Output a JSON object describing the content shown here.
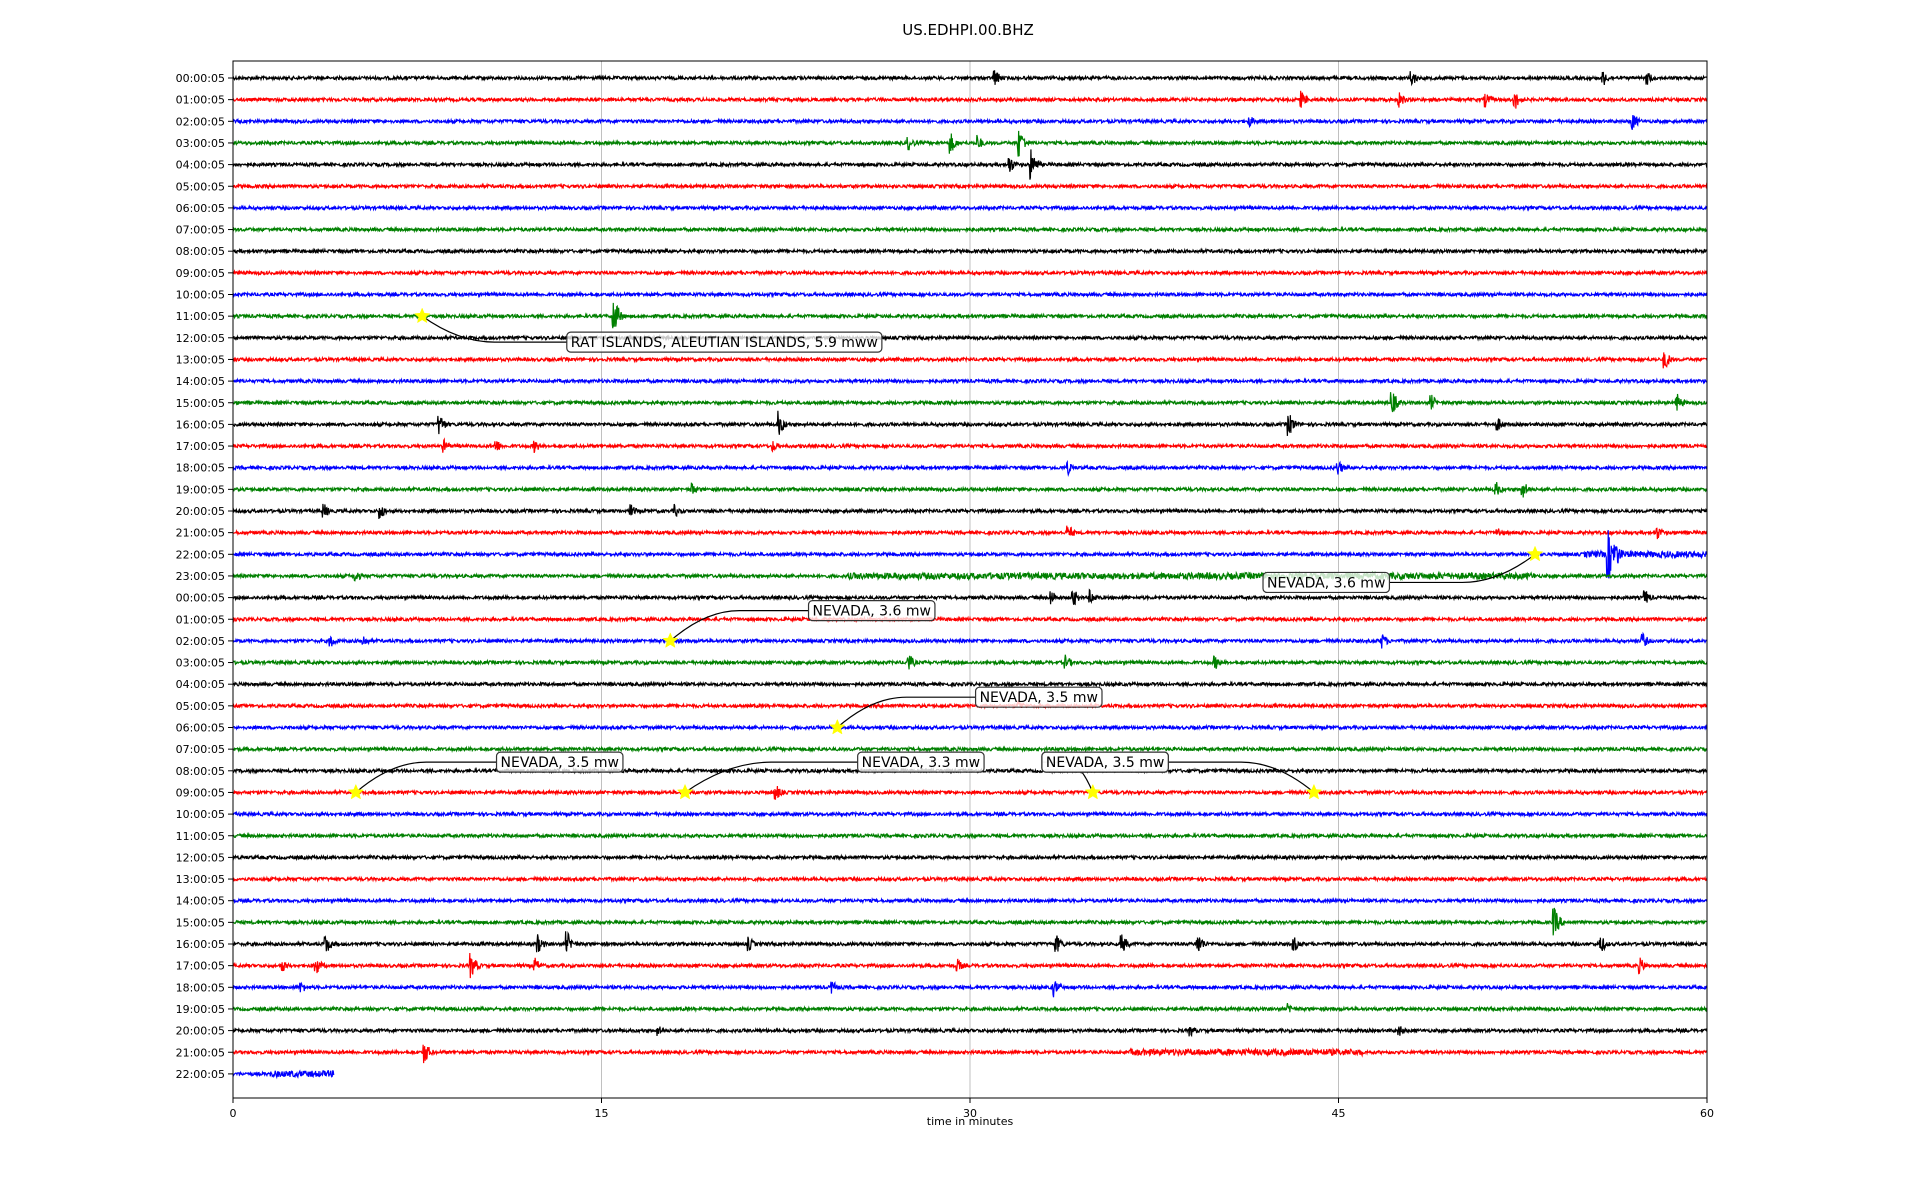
{
  "chart_data": {
    "type": "line",
    "title": "US.EDHPI.00.BHZ",
    "xlabel": "time in minutes",
    "ylabel": "",
    "xlim": [
      0,
      60
    ],
    "x_ticks": [
      0,
      15,
      30,
      45,
      60
    ],
    "grid": "vertical",
    "colors": [
      "#000000",
      "#ff0000",
      "#0000ff",
      "#008000"
    ],
    "row_labels": [
      "00:00:05",
      "01:00:05",
      "02:00:05",
      "03:00:05",
      "04:00:05",
      "05:00:05",
      "06:00:05",
      "07:00:05",
      "08:00:05",
      "09:00:05",
      "10:00:05",
      "11:00:05",
      "12:00:05",
      "13:00:05",
      "14:00:05",
      "15:00:05",
      "16:00:05",
      "17:00:05",
      "18:00:05",
      "19:00:05",
      "20:00:05",
      "21:00:05",
      "22:00:05",
      "23:00:05",
      "00:00:05",
      "01:00:05",
      "02:00:05",
      "03:00:05",
      "04:00:05",
      "05:00:05",
      "06:00:05",
      "07:00:05",
      "08:00:05",
      "09:00:05",
      "10:00:05",
      "11:00:05",
      "12:00:05",
      "13:00:05",
      "14:00:05",
      "15:00:05",
      "16:00:05",
      "17:00:05",
      "18:00:05",
      "19:00:05",
      "20:00:05",
      "21:00:05",
      "22:00:05"
    ],
    "last_row_end_minute": 4.1,
    "events": [
      {
        "row": 11,
        "minute": 7.7,
        "label": "RAT ISLANDS, ALEUTIAN ISLANDS, 5.9 mww",
        "label_row": 12.2,
        "label_minute": 20
      },
      {
        "row": 22,
        "minute": 53.0,
        "label": "NEVADA, 3.6 mw",
        "label_row": 23.3,
        "label_minute": 44.5
      },
      {
        "row": 26,
        "minute": 17.8,
        "label": "NEVADA, 3.6 mw",
        "label_row": 24.6,
        "label_minute": 26
      },
      {
        "row": 30,
        "minute": 24.6,
        "label": "NEVADA, 3.5 mw",
        "label_row": 28.6,
        "label_minute": 32.8
      },
      {
        "row": 33,
        "minute": 5.0,
        "label": "NEVADA, 3.5 mw",
        "label_row": 31.6,
        "label_minute": 13.3
      },
      {
        "row": 33,
        "minute": 18.4,
        "label": "NEVADA, 3.3 mw",
        "label_row": 31.6,
        "label_minute": 28
      },
      {
        "row": 33,
        "minute": 35.0,
        "label": "NEVADA, 3.5 mw",
        "label_row": 31.6,
        "label_minute": 35.5
      },
      {
        "row": 33,
        "minute": 44.0,
        "label": "NEVADA, 3.5 mw",
        "label_row": 31.6,
        "label_minute": 35.5
      }
    ],
    "bursts": [
      {
        "row": 0,
        "minute": 31.0,
        "amp": 10
      },
      {
        "row": 0,
        "minute": 48.0,
        "amp": 8
      },
      {
        "row": 0,
        "minute": 55.8,
        "amp": 8
      },
      {
        "row": 0,
        "minute": 57.6,
        "amp": 7
      },
      {
        "row": 1,
        "minute": 43.5,
        "amp": 9
      },
      {
        "row": 1,
        "minute": 47.5,
        "amp": 8
      },
      {
        "row": 1,
        "minute": 51.0,
        "amp": 8
      },
      {
        "row": 1,
        "minute": 52.2,
        "amp": 10
      },
      {
        "row": 2,
        "minute": 41.4,
        "amp": 6
      },
      {
        "row": 2,
        "minute": 57.0,
        "amp": 9
      },
      {
        "row": 3,
        "minute": 27.5,
        "amp": 8
      },
      {
        "row": 3,
        "minute": 29.2,
        "amp": 12
      },
      {
        "row": 3,
        "minute": 30.3,
        "amp": 9
      },
      {
        "row": 3,
        "minute": 32.0,
        "amp": 16
      },
      {
        "row": 4,
        "minute": 31.6,
        "amp": 10
      },
      {
        "row": 4,
        "minute": 32.5,
        "amp": 16
      },
      {
        "row": 11,
        "minute": 15.5,
        "amp": 20
      },
      {
        "row": 13,
        "minute": 58.3,
        "amp": 10
      },
      {
        "row": 15,
        "minute": 47.2,
        "amp": 12
      },
      {
        "row": 15,
        "minute": 48.8,
        "amp": 8
      },
      {
        "row": 15,
        "minute": 58.8,
        "amp": 9
      },
      {
        "row": 16,
        "minute": 8.4,
        "amp": 12
      },
      {
        "row": 16,
        "minute": 22.2,
        "amp": 14
      },
      {
        "row": 16,
        "minute": 43.0,
        "amp": 12
      },
      {
        "row": 16,
        "minute": 51.5,
        "amp": 7
      },
      {
        "row": 17,
        "minute": 8.6,
        "amp": 7
      },
      {
        "row": 17,
        "minute": 10.7,
        "amp": 8
      },
      {
        "row": 17,
        "minute": 12.3,
        "amp": 7
      },
      {
        "row": 17,
        "minute": 22.0,
        "amp": 6
      },
      {
        "row": 18,
        "minute": 34.0,
        "amp": 7
      },
      {
        "row": 18,
        "minute": 45.0,
        "amp": 8
      },
      {
        "row": 19,
        "minute": 18.7,
        "amp": 7
      },
      {
        "row": 19,
        "minute": 51.4,
        "amp": 9
      },
      {
        "row": 19,
        "minute": 52.5,
        "amp": 10
      },
      {
        "row": 20,
        "minute": 3.7,
        "amp": 8
      },
      {
        "row": 20,
        "minute": 6.0,
        "amp": 9
      },
      {
        "row": 20,
        "minute": 16.2,
        "amp": 7
      },
      {
        "row": 20,
        "minute": 18.0,
        "amp": 7
      },
      {
        "row": 21,
        "minute": 34.0,
        "amp": 9
      },
      {
        "row": 21,
        "minute": 51.5,
        "amp": 6
      },
      {
        "row": 21,
        "minute": 58.0,
        "amp": 7
      },
      {
        "row": 22,
        "minute": 56.0,
        "amp": 26
      },
      {
        "row": 22,
        "minute": 56.3,
        "amp": 14
      },
      {
        "row": 23,
        "minute": 5.0,
        "amp": 7
      },
      {
        "row": 24,
        "minute": 33.3,
        "amp": 9
      },
      {
        "row": 24,
        "minute": 34.2,
        "amp": 10
      },
      {
        "row": 24,
        "minute": 34.9,
        "amp": 8
      },
      {
        "row": 24,
        "minute": 57.5,
        "amp": 8
      },
      {
        "row": 26,
        "minute": 4.0,
        "amp": 7
      },
      {
        "row": 26,
        "minute": 5.3,
        "amp": 7
      },
      {
        "row": 26,
        "minute": 46.8,
        "amp": 8
      },
      {
        "row": 26,
        "minute": 57.4,
        "amp": 8
      },
      {
        "row": 27,
        "minute": 27.5,
        "amp": 10
      },
      {
        "row": 27,
        "minute": 33.9,
        "amp": 8
      },
      {
        "row": 27,
        "minute": 40.0,
        "amp": 7
      },
      {
        "row": 29,
        "minute": 32.0,
        "amp": 6
      },
      {
        "row": 33,
        "minute": 22.1,
        "amp": 9
      },
      {
        "row": 39,
        "minute": 53.8,
        "amp": 15
      },
      {
        "row": 40,
        "minute": 3.8,
        "amp": 10
      },
      {
        "row": 40,
        "minute": 12.4,
        "amp": 10
      },
      {
        "row": 40,
        "minute": 13.6,
        "amp": 13
      },
      {
        "row": 40,
        "minute": 21.0,
        "amp": 8
      },
      {
        "row": 40,
        "minute": 33.5,
        "amp": 11
      },
      {
        "row": 40,
        "minute": 36.2,
        "amp": 10
      },
      {
        "row": 40,
        "minute": 39.3,
        "amp": 11
      },
      {
        "row": 40,
        "minute": 43.2,
        "amp": 8
      },
      {
        "row": 40,
        "minute": 55.7,
        "amp": 9
      },
      {
        "row": 41,
        "minute": 2.0,
        "amp": 7
      },
      {
        "row": 41,
        "minute": 3.4,
        "amp": 10
      },
      {
        "row": 41,
        "minute": 9.7,
        "amp": 13
      },
      {
        "row": 41,
        "minute": 12.3,
        "amp": 8
      },
      {
        "row": 41,
        "minute": 29.5,
        "amp": 7
      },
      {
        "row": 41,
        "minute": 57.3,
        "amp": 8
      },
      {
        "row": 42,
        "minute": 2.8,
        "amp": 6
      },
      {
        "row": 42,
        "minute": 24.4,
        "amp": 7
      },
      {
        "row": 42,
        "minute": 33.4,
        "amp": 10
      },
      {
        "row": 43,
        "minute": 43.0,
        "amp": 6
      },
      {
        "row": 44,
        "minute": 17.3,
        "amp": 6
      },
      {
        "row": 44,
        "minute": 39.0,
        "amp": 6
      },
      {
        "row": 44,
        "minute": 47.5,
        "amp": 6
      },
      {
        "row": 45,
        "minute": 7.8,
        "amp": 12
      }
    ],
    "noisy_segments": [
      {
        "row": 22,
        "from": 55.0,
        "to": 60.0
      },
      {
        "row": 23,
        "from": 25.0,
        "to": 53.0
      },
      {
        "row": 45,
        "from": 36.5,
        "to": 46.0
      },
      {
        "row": 46,
        "from": 1.5,
        "to": 4.1
      }
    ]
  }
}
